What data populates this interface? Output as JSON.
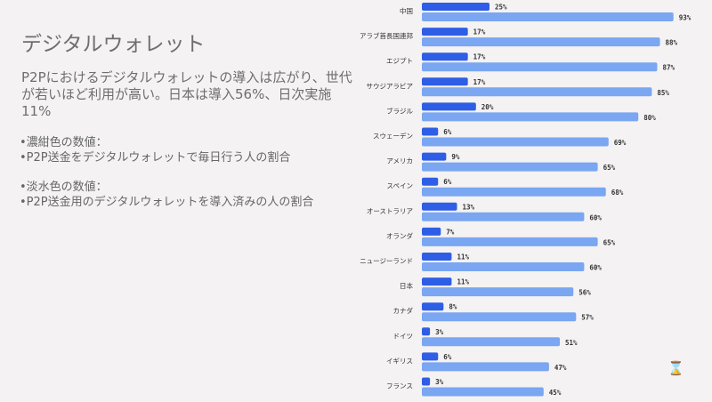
{
  "title": "デジタルウォレット",
  "summary": "P2Pにおけるデジタルウォレットの導入は広がり、世代が若いほど利用が高い。日本は導入56%、日次実施11%",
  "legend": {
    "dark_heading": "•濃紺色の数値：",
    "dark_desc": "•P2P送金をデジタルウォレットで毎日行う人の割合",
    "light_heading": "•淡水色の数値：",
    "light_desc": "•P2P送金用のデジタルウォレットを導入済みの人の割合"
  },
  "icons": {
    "hourglass": "hourglass-icon"
  },
  "chart_data": {
    "type": "bar",
    "orientation": "horizontal",
    "categories": [
      "中国",
      "アラブ首長国連邦",
      "エジプト",
      "サウジアラビア",
      "ブラジル",
      "スウェーデン",
      "アメリカ",
      "スペイン",
      "オーストラリア",
      "オランダ",
      "ニュージーランド",
      "日本",
      "カナダ",
      "ドイツ",
      "イギリス",
      "フランス"
    ],
    "series": [
      {
        "name": "毎日P2P送金",
        "color": "#2e5ee6",
        "values": [
          25,
          17,
          17,
          17,
          20,
          6,
          9,
          6,
          13,
          7,
          11,
          11,
          8,
          3,
          6,
          3
        ]
      },
      {
        "name": "導入済み",
        "color": "#7aa6f2",
        "values": [
          93,
          88,
          87,
          85,
          80,
          69,
          65,
          68,
          60,
          65,
          60,
          56,
          57,
          51,
          47,
          45
        ]
      }
    ],
    "unit": "%",
    "xlim": [
      0,
      100
    ]
  }
}
